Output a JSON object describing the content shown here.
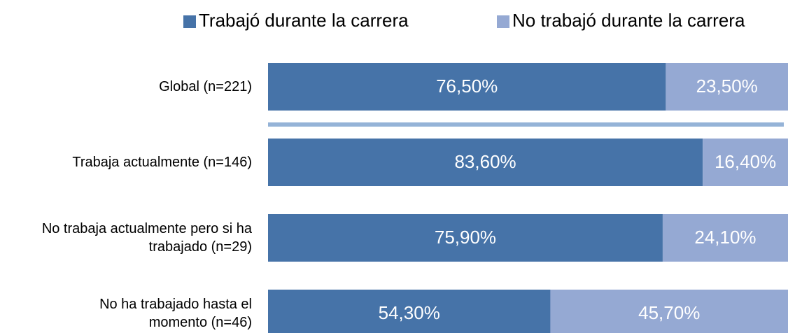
{
  "chart_data": {
    "type": "stacked-barh",
    "categories": [
      "Global (n=221)",
      "Trabaja actualmente (n=146)",
      "No trabaja actualmente pero si ha\ntrabajado (n=29)",
      "No ha trabajado hasta el\nmomento (n=46)"
    ],
    "series": [
      {
        "name": "Trabajó durante la carrera",
        "color": "#4673a8",
        "values": [
          76.5,
          83.6,
          75.9,
          54.3
        ],
        "value_labels": [
          "76,50%",
          "83,60%",
          "75,90%",
          "54,30%"
        ]
      },
      {
        "name": "No trabajó durante la carrera",
        "color": "#95a9d3",
        "values": [
          23.5,
          16.4,
          24.1,
          45.7
        ],
        "value_labels": [
          "23,50%",
          "16,40%",
          "24,10%",
          "45,70%"
        ]
      }
    ],
    "xlim": [
      0,
      100
    ],
    "legend": "top"
  }
}
